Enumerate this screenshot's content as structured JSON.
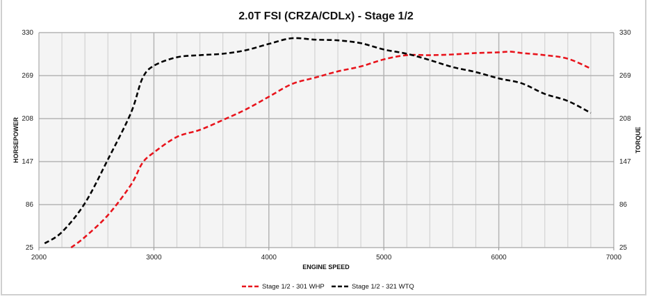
{
  "chart_data": {
    "type": "line",
    "title": "2.0T FSI (CRZA/CDLx) - Stage 1/2",
    "xlabel": "ENGINE SPEED",
    "ylabel": "HORSEPOWER",
    "y2label": "TORQUE",
    "xlim": [
      2000,
      7000
    ],
    "ylim": [
      25,
      330
    ],
    "xticks": [
      "2000",
      "3000",
      "4000",
      "5000",
      "6000",
      "7000"
    ],
    "xtick_values": [
      2000,
      3000,
      4000,
      5000,
      6000,
      7000
    ],
    "yticks": [
      "25",
      "86",
      "147",
      "208",
      "269",
      "330"
    ],
    "ytick_values": [
      25,
      86,
      147,
      208,
      269,
      330
    ],
    "minor_x_grid_step": 200,
    "grid": true,
    "legend_position": "bottom",
    "series": [
      {
        "name": "Stage 1/2 - 301 WHP",
        "color": "#e8141c",
        "style": "dashed",
        "x": [
          2280,
          2400,
          2600,
          2800,
          2900,
          3000,
          3200,
          3400,
          3600,
          3800,
          4000,
          4200,
          4400,
          4600,
          4800,
          5000,
          5200,
          5400,
          5600,
          5800,
          6000,
          6100,
          6200,
          6400,
          6600,
          6800
        ],
        "values": [
          25,
          40,
          71,
          114,
          145,
          160,
          182,
          192,
          206,
          221,
          239,
          257,
          266,
          275,
          282,
          292,
          298,
          298,
          299,
          301,
          302,
          303,
          301,
          298,
          293,
          279
        ]
      },
      {
        "name": "Stage 1/2 - 321 WTQ",
        "color": "#000000",
        "style": "dashed",
        "x": [
          2050,
          2200,
          2400,
          2600,
          2800,
          2900,
          3000,
          3200,
          3400,
          3600,
          3800,
          4000,
          4200,
          4400,
          4600,
          4800,
          5000,
          5200,
          5400,
          5600,
          5800,
          6000,
          6200,
          6400,
          6600,
          6800
        ],
        "values": [
          31,
          47,
          88,
          150,
          216,
          265,
          283,
          295,
          298,
          300,
          305,
          314,
          322,
          320,
          319,
          315,
          306,
          300,
          291,
          281,
          274,
          265,
          258,
          243,
          233,
          216
        ]
      }
    ]
  }
}
